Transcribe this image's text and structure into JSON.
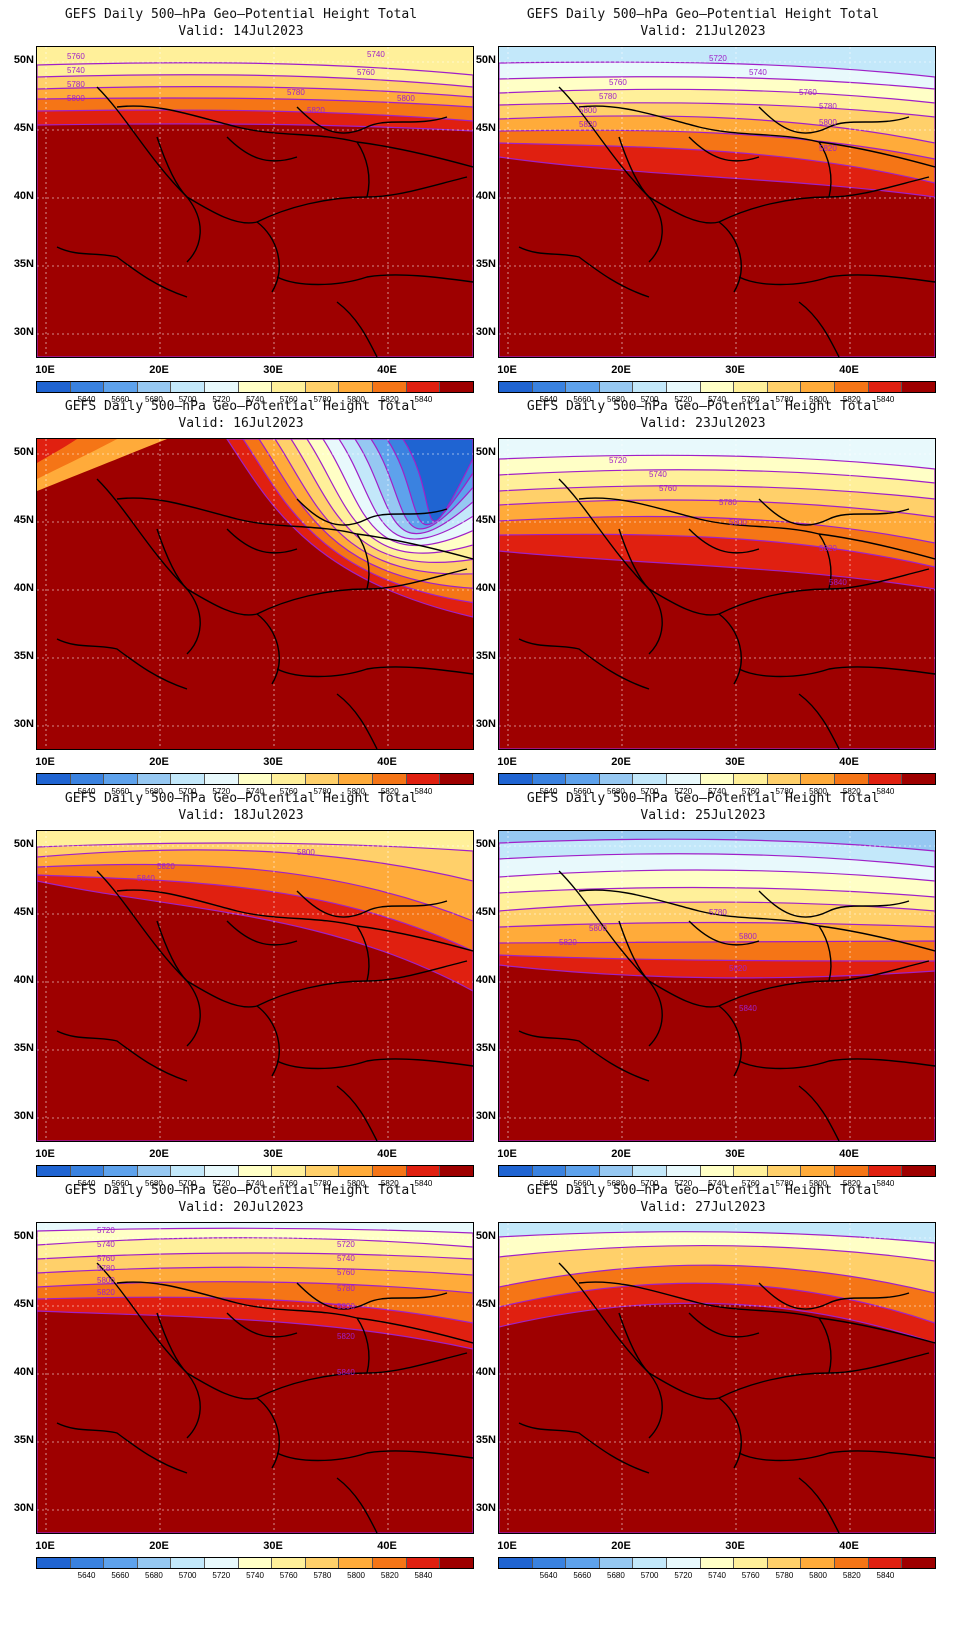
{
  "title_line": "GEFS Daily 500–hPa Geo–Potential Height Total",
  "lat_labels": [
    "50N",
    "45N",
    "40N",
    "35N",
    "30N"
  ],
  "lon_labels": [
    "10E",
    "20E",
    "30E",
    "40E"
  ],
  "colorbar": {
    "colors": [
      "#1f64d2",
      "#3a82e0",
      "#5ea2ec",
      "#96c8f2",
      "#c3e8fa",
      "#e8f9fc",
      "#ffffc6",
      "#fff09a",
      "#ffd06a",
      "#ffab3a",
      "#f57516",
      "#e02010",
      "#9e0000"
    ],
    "labels": [
      "5640",
      "5660",
      "5680",
      "5700",
      "5720",
      "5740",
      "5760",
      "5780",
      "5800",
      "5820",
      "5840"
    ]
  },
  "panels": [
    {
      "valid": "Valid: 14Jul2023",
      "contours": [
        "5760",
        "5740",
        "5780",
        "5800",
        "5780",
        "5760",
        "5740",
        "5800",
        "5820"
      ]
    },
    {
      "valid": "Valid: 21Jul2023",
      "contours": [
        "5720",
        "5740",
        "5760",
        "5780",
        "5800",
        "5820",
        "5760",
        "5780",
        "5800",
        "5820"
      ]
    },
    {
      "valid": "Valid: 16Jul2023",
      "contours": []
    },
    {
      "valid": "Valid: 23Jul2023",
      "contours": [
        "5720",
        "5740",
        "5760",
        "5780",
        "5800",
        "5820",
        "5840"
      ]
    },
    {
      "valid": "Valid: 18Jul2023",
      "contours": [
        "5800",
        "5820",
        "5840"
      ]
    },
    {
      "valid": "Valid: 25Jul2023",
      "contours": [
        "5780",
        "5800",
        "5800",
        "5820",
        "5820",
        "5840"
      ]
    },
    {
      "valid": "Valid: 20Jul2023",
      "contours": [
        "5720",
        "5740",
        "5760",
        "5780",
        "5800",
        "5820",
        "5720",
        "5740",
        "5760",
        "5780",
        "5800",
        "5820",
        "5840"
      ]
    },
    {
      "valid": "Valid: 27Jul2023",
      "contours": []
    }
  ]
}
